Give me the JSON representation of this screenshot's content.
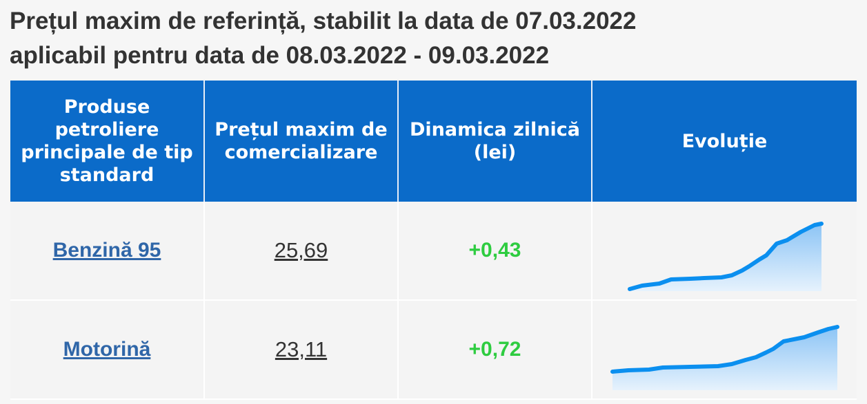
{
  "title": [
    "Prețul maxim de referință, stabilit la data de 07.03.2022",
    "aplicabil pentru data de 08.03.2022 - 09.03.2022"
  ],
  "table": {
    "header": [
      "Produse petroliere principale de tip standard",
      "Prețul maxim de comercializare",
      "Dinamica zilnică (lei)",
      "Evoluție"
    ],
    "rows": [
      [
        "Benzină 95",
        "25,69",
        "+0,43"
      ],
      [
        "Motorină",
        "23,11",
        "+0,72"
      ]
    ]
  }
}
